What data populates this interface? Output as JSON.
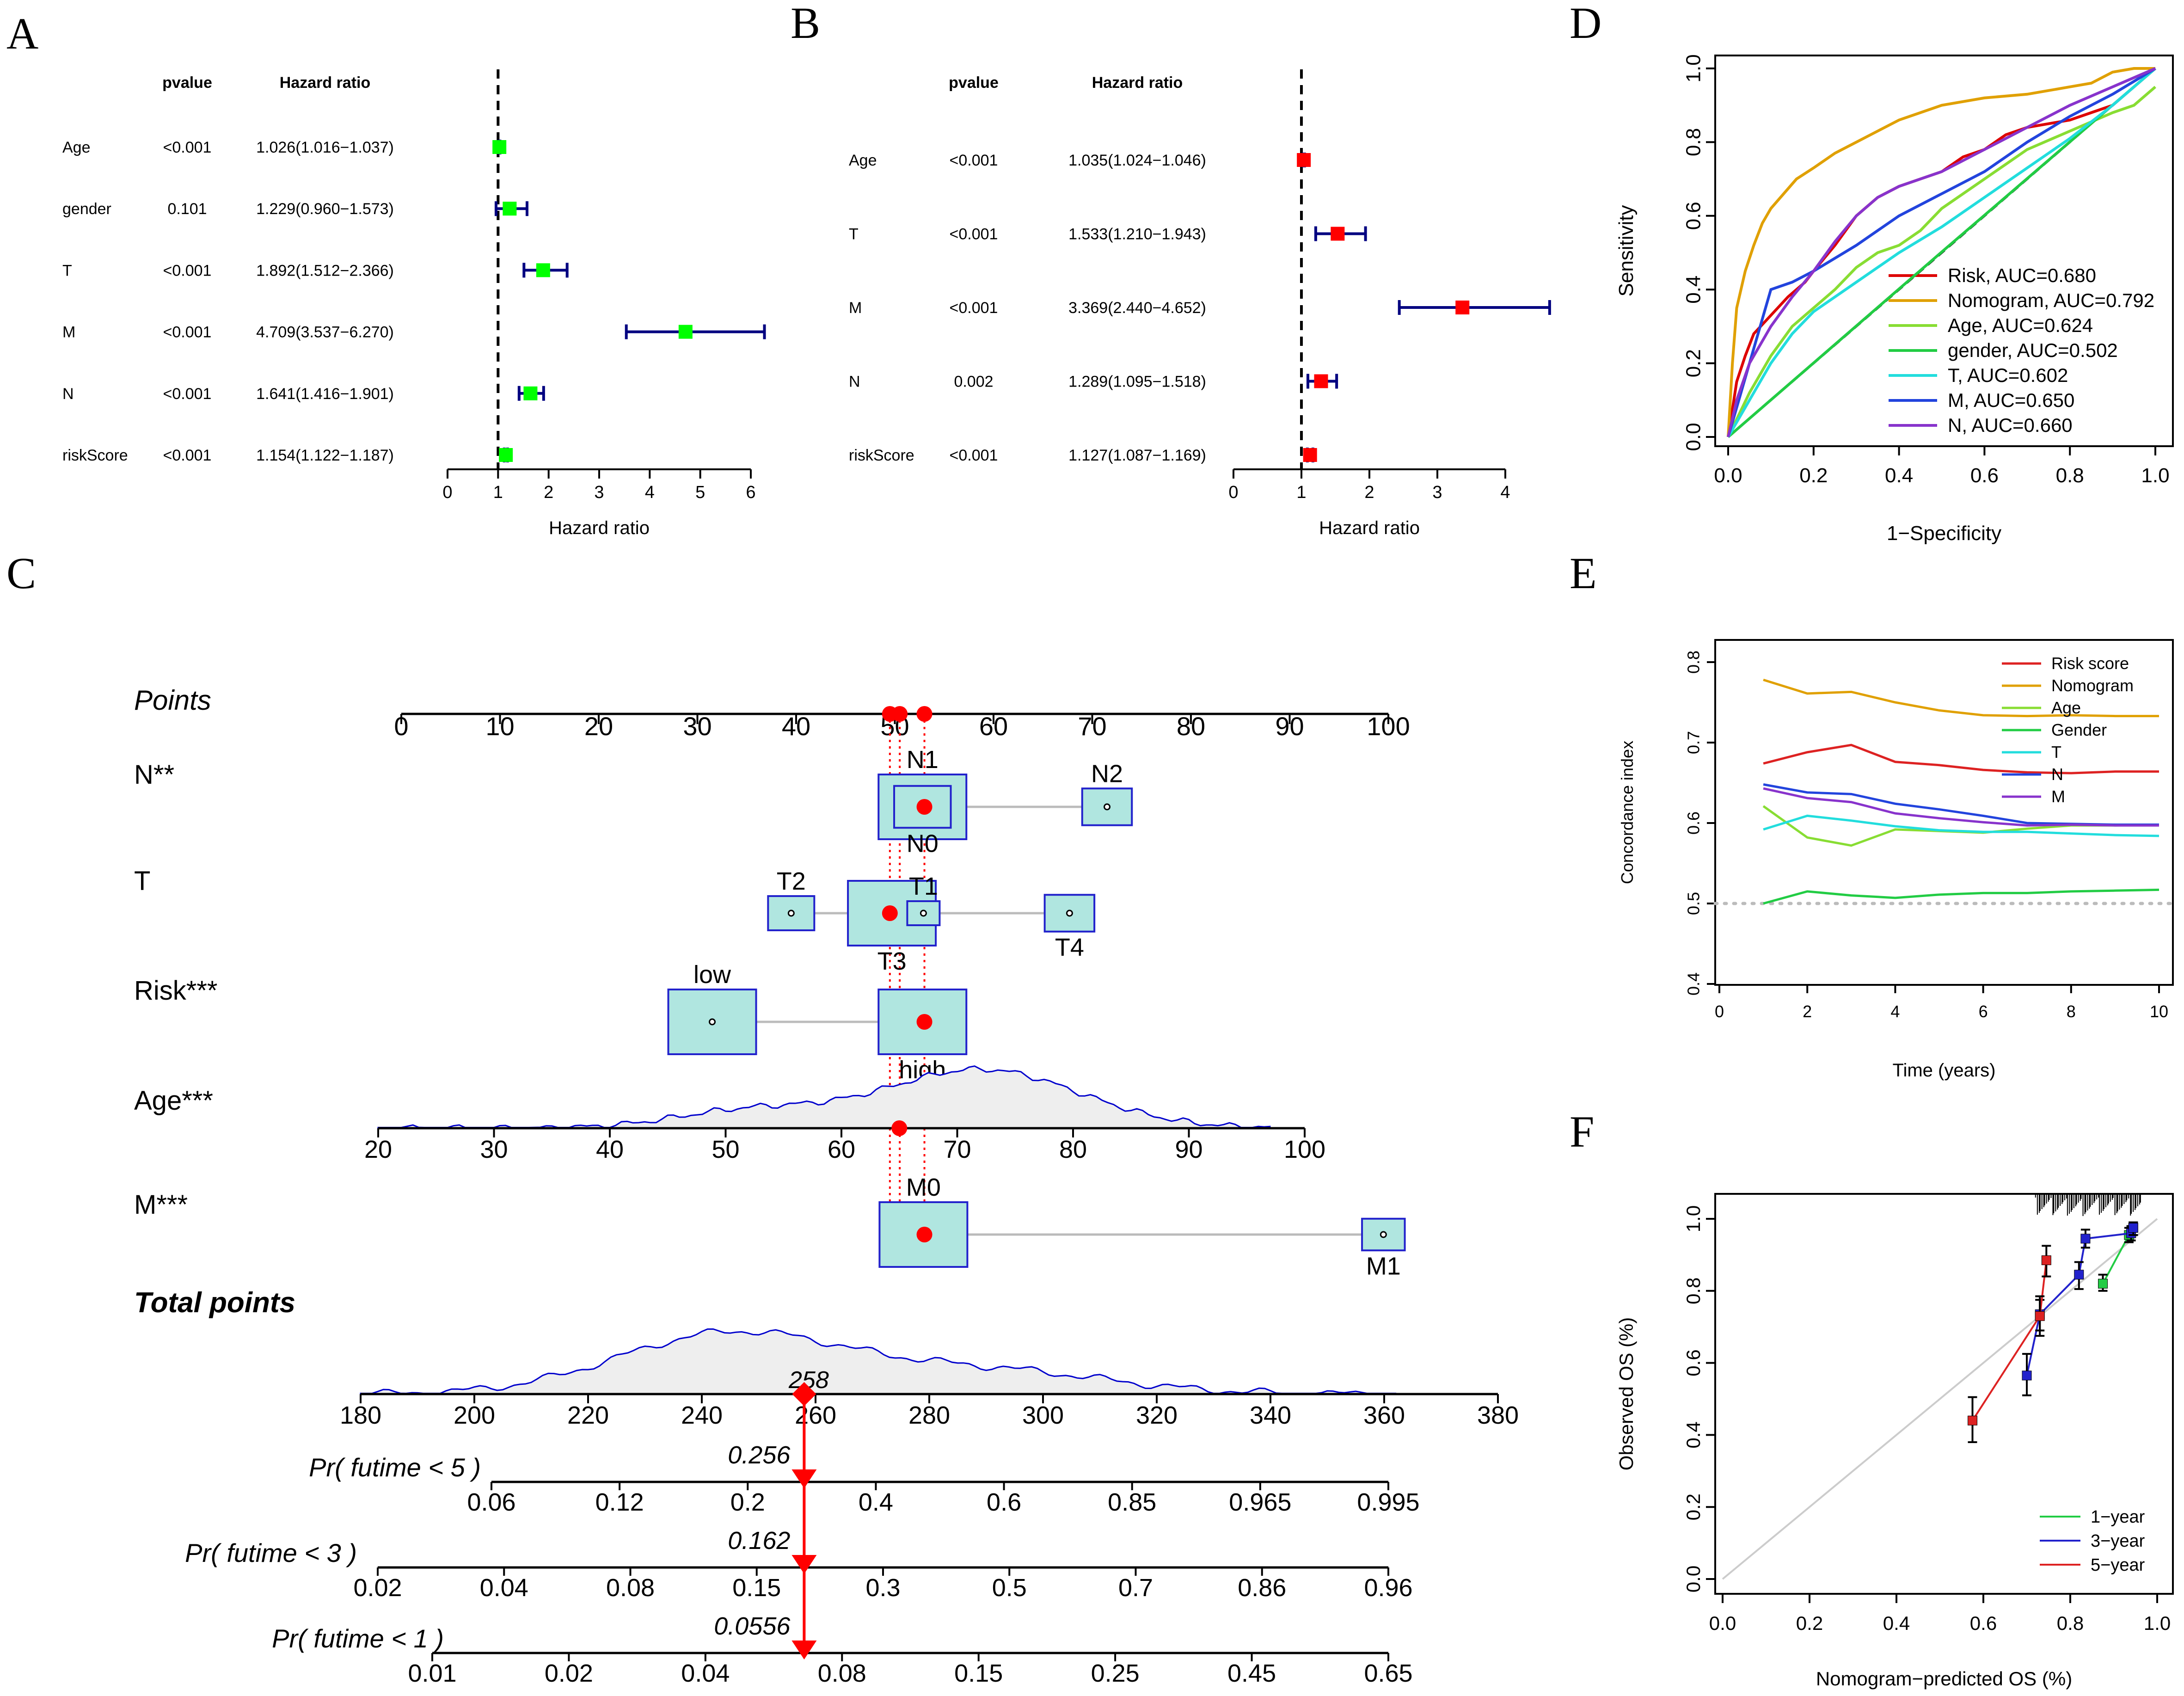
{
  "panel_labels": [
    "A",
    "B",
    "C",
    "D",
    "E",
    "F"
  ],
  "colors": {
    "green": "#00ff00",
    "red": "#ff0000",
    "navy": "#000080",
    "ciFill": "#b0e6e0",
    "ciStroke": "#2222cc",
    "density": "#0000cc",
    "densityFill": "#eeeeee"
  },
  "chart_data": [
    {
      "id": "A",
      "type": "forest",
      "title": "",
      "header_pvalue": "pvalue",
      "header_hr": "Hazard ratio",
      "xlabel": "Hazard ratio",
      "xlim": [
        0,
        6
      ],
      "ticks": [
        "0",
        "1",
        "2",
        "3",
        "4",
        "5",
        "6"
      ],
      "reference": 1,
      "rows": [
        {
          "label": "Age",
          "pvalue": "<0.001",
          "hr_text": "1.026(1.016−1.037)",
          "hr": 1.026,
          "lo": 1.016,
          "hi": 1.037
        },
        {
          "label": "gender",
          "pvalue": "0.101",
          "hr_text": "1.229(0.960−1.573)",
          "hr": 1.229,
          "lo": 0.96,
          "hi": 1.573
        },
        {
          "label": "T",
          "pvalue": "<0.001",
          "hr_text": "1.892(1.512−2.366)",
          "hr": 1.892,
          "lo": 1.512,
          "hi": 2.366
        },
        {
          "label": "M",
          "pvalue": "<0.001",
          "hr_text": "4.709(3.537−6.270)",
          "hr": 4.709,
          "lo": 3.537,
          "hi": 6.27
        },
        {
          "label": "N",
          "pvalue": "<0.001",
          "hr_text": "1.641(1.416−1.901)",
          "hr": 1.641,
          "lo": 1.416,
          "hi": 1.901
        },
        {
          "label": "riskScore",
          "pvalue": "<0.001",
          "hr_text": "1.154(1.122−1.187)",
          "hr": 1.154,
          "lo": 1.122,
          "hi": 1.187
        }
      ]
    },
    {
      "id": "B",
      "type": "forest",
      "title": "",
      "header_pvalue": "pvalue",
      "header_hr": "Hazard ratio",
      "xlabel": "Hazard ratio",
      "xlim": [
        0,
        4
      ],
      "ticks": [
        "0",
        "1",
        "2",
        "3",
        "4"
      ],
      "reference": 1,
      "rows": [
        {
          "label": "Age",
          "pvalue": "<0.001",
          "hr_text": "1.035(1.024−1.046)",
          "hr": 1.035,
          "lo": 1.024,
          "hi": 1.046
        },
        {
          "label": "T",
          "pvalue": "<0.001",
          "hr_text": "1.533(1.210−1.943)",
          "hr": 1.533,
          "lo": 1.21,
          "hi": 1.943
        },
        {
          "label": "M",
          "pvalue": "<0.001",
          "hr_text": "3.369(2.440−4.652)",
          "hr": 3.369,
          "lo": 2.44,
          "hi": 4.652
        },
        {
          "label": "N",
          "pvalue": "0.002",
          "hr_text": "1.289(1.095−1.518)",
          "hr": 1.289,
          "lo": 1.095,
          "hi": 1.518
        },
        {
          "label": "riskScore",
          "pvalue": "<0.001",
          "hr_text": "1.127(1.087−1.169)",
          "hr": 1.127,
          "lo": 1.087,
          "hi": 1.169
        }
      ]
    },
    {
      "id": "C",
      "type": "nomogram",
      "points_label": "Points",
      "points_ticks": [
        "0",
        "10",
        "20",
        "30",
        "40",
        "50",
        "60",
        "70",
        "80",
        "90",
        "100"
      ],
      "selected_points": [
        49.5,
        50.5,
        53
      ],
      "variables": [
        {
          "label": "N**",
          "categories": [
            {
              "name": "N1",
              "points": 52.8,
              "size": 1.0,
              "label_pos": "above"
            },
            {
              "name": "N2",
              "points": 71.5,
              "size": 0.45,
              "label_pos": "above"
            },
            {
              "name": "N0",
              "points": 52.8,
              "size": 0.55,
              "label_pos": "below"
            }
          ],
          "selected": 53
        },
        {
          "label": "T",
          "categories": [
            {
              "name": "T2",
              "points": 39.5,
              "size": 0.4,
              "label_pos": "above"
            },
            {
              "name": "T3",
              "points": 49.7,
              "size": 1.0,
              "label_pos": "below"
            },
            {
              "name": "T1",
              "points": 52.9,
              "size": 0.2,
              "label_pos": "above"
            },
            {
              "name": "T4",
              "points": 67.7,
              "size": 0.45,
              "label_pos": "below"
            }
          ],
          "selected": 49.5
        },
        {
          "label": "Risk***",
          "categories": [
            {
              "name": "low",
              "points": 31.5,
              "size": 1.0,
              "label_pos": "above"
            },
            {
              "name": "high",
              "points": 52.8,
              "size": 1.0,
              "label_pos": "below"
            }
          ],
          "selected": 53
        },
        {
          "label": "Age***",
          "type": "density",
          "ticks": [
            "20",
            "30",
            "40",
            "50",
            "60",
            "70",
            "80",
            "90",
            "100"
          ],
          "range": [
            20,
            100
          ],
          "selected": 65
        },
        {
          "label": "M***",
          "categories": [
            {
              "name": "M0",
              "points": 52.9,
              "size": 1.0,
              "label_pos": "above"
            },
            {
              "name": "M1",
              "points": 99.5,
              "size": 0.35,
              "label_pos": "below"
            }
          ],
          "selected": 53
        }
      ],
      "total_points_label": "Total points",
      "total_ticks": [
        "180",
        "200",
        "220",
        "240",
        "260",
        "280",
        "300",
        "320",
        "340",
        "360",
        "380"
      ],
      "total_range": [
        180,
        380
      ],
      "total_selected": 258,
      "total_selected_label": "258",
      "probabilities": [
        {
          "label": "Pr( futime < 5 )",
          "ticks": [
            "0.06",
            "0.12",
            "0.2",
            "0.4",
            "0.6",
            "0.85",
            "0.965",
            "0.995"
          ],
          "value_label": "0.256"
        },
        {
          "label": "Pr( futime < 3 )",
          "ticks": [
            "0.02",
            "0.04",
            "0.08",
            "0.15",
            "0.3",
            "0.5",
            "0.7",
            "0.86",
            "0.96"
          ],
          "value_label": "0.162"
        },
        {
          "label": "Pr( futime < 1 )",
          "ticks": [
            "0.01",
            "0.02",
            "0.04",
            "0.08",
            "0.15",
            "0.25",
            "0.45",
            "0.65"
          ],
          "value_label": "0.0556"
        }
      ]
    },
    {
      "id": "D",
      "type": "line",
      "xlabel": "1−Specificity",
      "ylabel": "Sensitivity",
      "xlim": [
        0,
        1
      ],
      "ylim": [
        0,
        1
      ],
      "ticks": [
        "0.0",
        "0.2",
        "0.4",
        "0.6",
        "0.8",
        "1.0"
      ],
      "legend": "bottom-right",
      "series": [
        {
          "name": "Risk, AUC=0.680",
          "color": "#dd0000",
          "x": [
            0,
            0.02,
            0.04,
            0.06,
            0.1,
            0.14,
            0.18,
            0.2,
            0.25,
            0.3,
            0.35,
            0.4,
            0.45,
            0.5,
            0.55,
            0.6,
            0.65,
            0.7,
            0.75,
            0.8,
            0.85,
            0.9,
            0.95,
            1
          ],
          "y": [
            0,
            0.15,
            0.22,
            0.28,
            0.33,
            0.38,
            0.42,
            0.45,
            0.52,
            0.6,
            0.65,
            0.68,
            0.7,
            0.72,
            0.76,
            0.78,
            0.82,
            0.84,
            0.85,
            0.86,
            0.88,
            0.9,
            0.95,
            1
          ]
        },
        {
          "name": "Nomogram, AUC=0.792",
          "color": "#e0a000",
          "x": [
            0,
            0.01,
            0.02,
            0.04,
            0.06,
            0.08,
            0.1,
            0.13,
            0.16,
            0.2,
            0.25,
            0.3,
            0.35,
            0.4,
            0.5,
            0.6,
            0.7,
            0.75,
            0.8,
            0.85,
            0.9,
            0.95,
            1
          ],
          "y": [
            0,
            0.2,
            0.35,
            0.45,
            0.52,
            0.58,
            0.62,
            0.66,
            0.7,
            0.73,
            0.77,
            0.8,
            0.83,
            0.86,
            0.9,
            0.92,
            0.93,
            0.94,
            0.95,
            0.96,
            0.99,
            1,
            1
          ]
        },
        {
          "name": "Age, AUC=0.624",
          "color": "#88dd33",
          "x": [
            0,
            0.05,
            0.1,
            0.15,
            0.2,
            0.25,
            0.3,
            0.35,
            0.4,
            0.45,
            0.5,
            0.55,
            0.6,
            0.65,
            0.7,
            0.8,
            0.9,
            0.95,
            1
          ],
          "y": [
            0,
            0.12,
            0.22,
            0.3,
            0.35,
            0.4,
            0.46,
            0.5,
            0.52,
            0.56,
            0.62,
            0.66,
            0.7,
            0.74,
            0.78,
            0.83,
            0.88,
            0.9,
            0.95
          ]
        },
        {
          "name": "gender, AUC=0.502",
          "color": "#22cc44",
          "x": [
            0,
            0.5,
            1
          ],
          "y": [
            0,
            0.502,
            1
          ]
        },
        {
          "name": "T, AUC=0.602",
          "color": "#22dddd",
          "x": [
            0,
            0.05,
            0.1,
            0.15,
            0.2,
            0.3,
            0.4,
            0.5,
            0.6,
            0.7,
            0.8,
            0.9,
            1
          ],
          "y": [
            0,
            0.1,
            0.2,
            0.28,
            0.34,
            0.42,
            0.5,
            0.57,
            0.65,
            0.73,
            0.81,
            0.9,
            1
          ]
        },
        {
          "name": "M, AUC=0.650",
          "color": "#2244dd",
          "x": [
            0,
            0.05,
            0.1,
            0.15,
            0.2,
            0.3,
            0.4,
            0.5,
            0.6,
            0.7,
            0.8,
            0.9,
            1
          ],
          "y": [
            0,
            0.2,
            0.4,
            0.42,
            0.45,
            0.52,
            0.6,
            0.66,
            0.72,
            0.8,
            0.87,
            0.93,
            1
          ]
        },
        {
          "name": "N, AUC=0.660",
          "color": "#8833cc",
          "x": [
            0,
            0.02,
            0.05,
            0.1,
            0.15,
            0.2,
            0.25,
            0.3,
            0.35,
            0.4,
            0.5,
            0.6,
            0.7,
            0.8,
            0.9,
            1
          ],
          "y": [
            0,
            0.1,
            0.2,
            0.3,
            0.38,
            0.45,
            0.53,
            0.6,
            0.65,
            0.68,
            0.72,
            0.78,
            0.84,
            0.9,
            0.95,
            1
          ]
        }
      ]
    },
    {
      "id": "E",
      "type": "line",
      "xlabel": "Time (years)",
      "ylabel": "Concordance index",
      "xlim": [
        0,
        10
      ],
      "ylim": [
        0.4,
        0.8
      ],
      "xticks": [
        "0",
        "2",
        "4",
        "6",
        "8",
        "10"
      ],
      "yticks": [
        "0.4",
        "0.5",
        "0.6",
        "0.7",
        "0.8"
      ],
      "reference": 0.5,
      "legend": "top-right",
      "series": [
        {
          "name": "Risk score",
          "color": "#dd2222",
          "x": [
            1,
            2,
            3,
            4,
            5,
            6,
            7,
            8,
            9,
            10
          ],
          "y": [
            0.674,
            0.688,
            0.697,
            0.676,
            0.672,
            0.666,
            0.663,
            0.662,
            0.664,
            0.664
          ]
        },
        {
          "name": "Nomogram",
          "color": "#e0a000",
          "x": [
            1,
            2,
            3,
            4,
            5,
            6,
            7,
            8,
            9,
            10
          ],
          "y": [
            0.778,
            0.761,
            0.763,
            0.75,
            0.74,
            0.734,
            0.733,
            0.734,
            0.733,
            0.733
          ]
        },
        {
          "name": "Age",
          "color": "#88dd33",
          "x": [
            1,
            2,
            3,
            4,
            5,
            6,
            7,
            8,
            9,
            10
          ],
          "y": [
            0.621,
            0.582,
            0.572,
            0.592,
            0.59,
            0.588,
            0.593,
            0.597,
            0.597,
            0.598
          ]
        },
        {
          "name": "Gender",
          "color": "#22cc44",
          "x": [
            1,
            2,
            3,
            4,
            5,
            6,
            7,
            8,
            9,
            10
          ],
          "y": [
            0.5,
            0.515,
            0.51,
            0.507,
            0.511,
            0.513,
            0.513,
            0.515,
            0.516,
            0.517
          ]
        },
        {
          "name": "T",
          "color": "#22dddd",
          "x": [
            1,
            2,
            3,
            4,
            5,
            6,
            7,
            8,
            9,
            10
          ],
          "y": [
            0.592,
            0.609,
            0.603,
            0.596,
            0.591,
            0.589,
            0.589,
            0.587,
            0.585,
            0.584
          ]
        },
        {
          "name": "N",
          "color": "#2244dd",
          "x": [
            1,
            2,
            3,
            4,
            5,
            6,
            7,
            8,
            9,
            10
          ],
          "y": [
            0.648,
            0.638,
            0.636,
            0.624,
            0.617,
            0.609,
            0.6,
            0.599,
            0.598,
            0.598
          ]
        },
        {
          "name": "M",
          "color": "#8833cc",
          "x": [
            1,
            2,
            3,
            4,
            5,
            6,
            7,
            8,
            9,
            10
          ],
          "y": [
            0.643,
            0.631,
            0.626,
            0.612,
            0.606,
            0.601,
            0.597,
            0.598,
            0.597,
            0.597
          ]
        }
      ]
    },
    {
      "id": "F",
      "type": "calibration",
      "xlabel": "Nomogram−predicted OS (%)",
      "ylabel": "Observed OS (%)",
      "xlim": [
        0,
        1
      ],
      "ylim": [
        0,
        1
      ],
      "ticks": [
        "0.0",
        "0.2",
        "0.4",
        "0.6",
        "0.8",
        "1.0"
      ],
      "legend": "bottom-right",
      "series": [
        {
          "name": "1−year",
          "color": "#22cc44",
          "x": [
            0.875,
            0.935,
            0.945
          ],
          "y": [
            0.82,
            0.955,
            0.975
          ],
          "lo": [
            0.8,
            0.935,
            0.955
          ],
          "hi": [
            0.845,
            0.975,
            0.99
          ]
        },
        {
          "name": "3−year",
          "color": "#2222cc",
          "x": [
            0.7,
            0.73,
            0.82,
            0.835,
            0.94,
            0.945
          ],
          "y": [
            0.565,
            0.735,
            0.845,
            0.945,
            0.96,
            0.975
          ],
          "lo": [
            0.51,
            0.69,
            0.805,
            0.92,
            0.94,
            0.955
          ],
          "hi": [
            0.625,
            0.775,
            0.88,
            0.97,
            0.98,
            0.99
          ]
        },
        {
          "name": "5−year",
          "color": "#dd2222",
          "x": [
            0.575,
            0.73,
            0.745
          ],
          "y": [
            0.44,
            0.73,
            0.885
          ],
          "lo": [
            0.38,
            0.675,
            0.84
          ],
          "hi": [
            0.505,
            0.785,
            0.925
          ]
        }
      ]
    }
  ]
}
